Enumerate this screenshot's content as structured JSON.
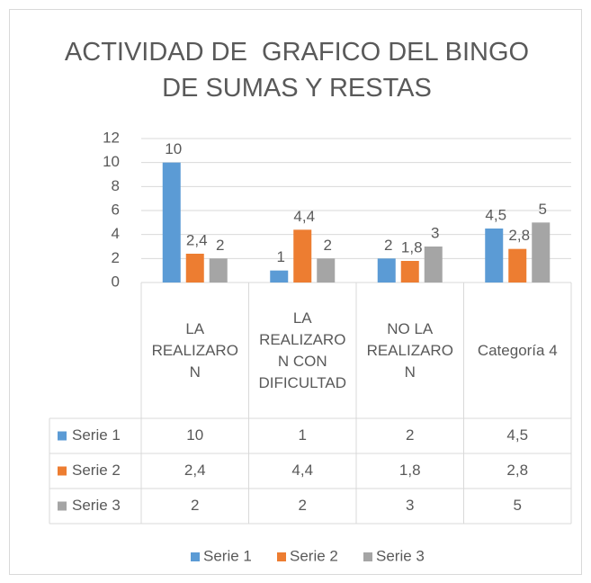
{
  "chart_data": {
    "type": "bar",
    "title": "ACTIVIDAD DE  GRAFICO DEL BINGO DE SUMAS Y RESTAS",
    "categories": [
      "LA REALIZARON",
      "LA REALIZARON CON DIFICULTAD",
      "NO LA REALIZARON",
      "Categoría 4"
    ],
    "series": [
      {
        "name": "Serie 1",
        "color": "#5b9bd5",
        "values": [
          10,
          1,
          2,
          4.5
        ],
        "value_labels": [
          "10",
          "1",
          "2",
          "4,5"
        ]
      },
      {
        "name": "Serie 2",
        "color": "#ed7d31",
        "values": [
          2.4,
          4.4,
          1.8,
          2.8
        ],
        "value_labels": [
          "2,4",
          "4,4",
          "1,8",
          "2,8"
        ]
      },
      {
        "name": "Serie 3",
        "color": "#a5a5a5",
        "values": [
          2,
          2,
          3,
          5
        ],
        "value_labels": [
          "2",
          "2",
          "3",
          "5"
        ]
      }
    ],
    "ylim": [
      0,
      12
    ],
    "yticks": [
      0,
      2,
      4,
      6,
      8,
      10,
      12
    ],
    "grid": true,
    "legend": "bottom"
  }
}
